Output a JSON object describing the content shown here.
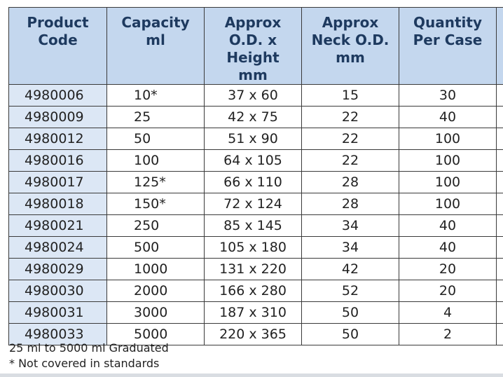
{
  "table": {
    "headers": [
      {
        "lines": [
          "Product",
          "Code"
        ]
      },
      {
        "lines": [
          "Capacity",
          "ml"
        ]
      },
      {
        "lines": [
          "Approx",
          "O.D. x Height",
          "mm"
        ]
      },
      {
        "lines": [
          "Approx",
          "Neck O.D.",
          "mm"
        ]
      },
      {
        "lines": [
          "Quantity",
          "Per Case"
        ]
      }
    ],
    "rows": [
      [
        "4980006",
        "10*",
        "37 x 60",
        "15",
        "30"
      ],
      [
        "4980009",
        "25",
        "42 x 75",
        "22",
        "40"
      ],
      [
        "4980012",
        "50",
        "51 x 90",
        "22",
        "100"
      ],
      [
        "4980016",
        "100",
        "64 x 105",
        "22",
        "100"
      ],
      [
        "4980017",
        "125*",
        "66 x 110",
        "28",
        "100"
      ],
      [
        "4980018",
        "150*",
        "72 x 124",
        "28",
        "100"
      ],
      [
        "4980021",
        "250",
        "85 x 145",
        "34",
        "40"
      ],
      [
        "4980024",
        "500",
        "105 x 180",
        "34",
        "40"
      ],
      [
        "4980029",
        "1000",
        "131 x 220",
        "42",
        "20"
      ],
      [
        "4980030",
        "2000",
        "166 x 280",
        "52",
        "20"
      ],
      [
        "4980031",
        "3000",
        "187 x 310",
        "50",
        "4"
      ],
      [
        "4980033",
        "5000",
        "220 x 365",
        "50",
        "2"
      ]
    ]
  },
  "notes": {
    "line1": "25 ml to 5000 ml Graduated",
    "line2": "* Not covered in standards"
  },
  "colors": {
    "header_bg": "#c4d7ee",
    "header_text": "#1e3a5f",
    "code_col_bg": "#dce7f5",
    "border": "#3a3a3a"
  }
}
